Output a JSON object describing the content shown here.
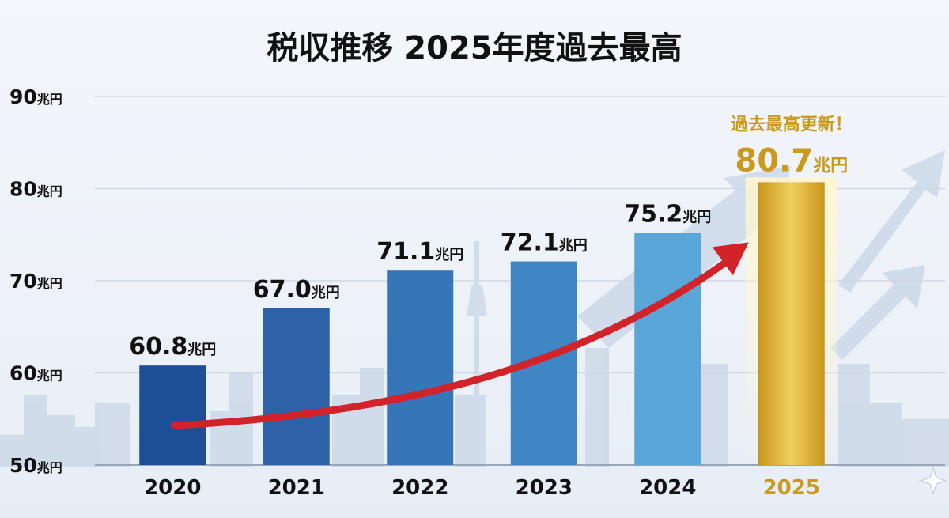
{
  "chart_data": {
    "type": "bar",
    "title": "税収推移 2025年度過去最高",
    "categories": [
      "2020",
      "2021",
      "2022",
      "2023",
      "2024",
      "2025"
    ],
    "values": [
      60.8,
      67.0,
      71.1,
      72.1,
      75.2,
      80.7
    ],
    "unit": "兆円",
    "ylim": [
      50,
      90
    ],
    "yticks": [
      50,
      60,
      70,
      80,
      90
    ],
    "grid": true,
    "bar_colors": [
      "#1d4f96",
      "#2d62a8",
      "#3575b8",
      "#3f86c5",
      "#5aa6d8",
      "#e0b23a"
    ],
    "highlight_index": 5,
    "highlight_label": "過去最高更新！",
    "highlight_color": "#c99a1e",
    "trend_arrow_color": "#d2232a"
  }
}
